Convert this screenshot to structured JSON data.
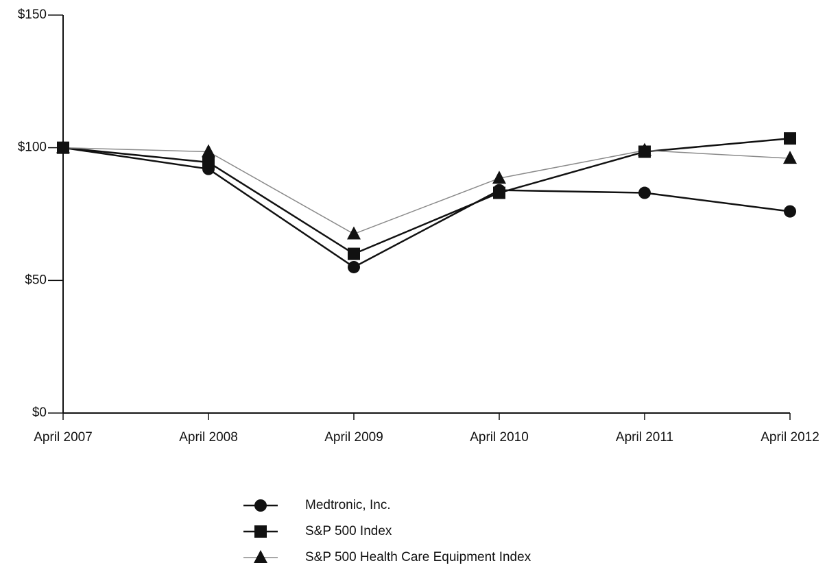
{
  "chart_data": {
    "type": "line",
    "categories": [
      "April 2007",
      "April 2008",
      "April 2009",
      "April 2010",
      "April 2011",
      "April 2012"
    ],
    "series": [
      {
        "name": "Medtronic, Inc.",
        "color": "#111111",
        "marker": "circle",
        "values": [
          100,
          92,
          55,
          84,
          83,
          76
        ]
      },
      {
        "name": "S&P 500 Index",
        "color": "#111111",
        "marker": "square",
        "values": [
          100,
          94.5,
          60,
          83,
          98.5,
          103.5
        ]
      },
      {
        "name": "S&P 500 Health Care Equipment Index",
        "color": "#8a8a8a",
        "marker": "triangle",
        "values": [
          100,
          98.5,
          67.5,
          88.5,
          99,
          96
        ]
      }
    ],
    "ylim": [
      0,
      150
    ],
    "yticks": [
      {
        "value": 0,
        "label": "$0"
      },
      {
        "value": 50,
        "label": "$50"
      },
      {
        "value": 100,
        "label": "$100"
      },
      {
        "value": 150,
        "label": "$150"
      }
    ],
    "grid": false,
    "legend": "bottom"
  }
}
